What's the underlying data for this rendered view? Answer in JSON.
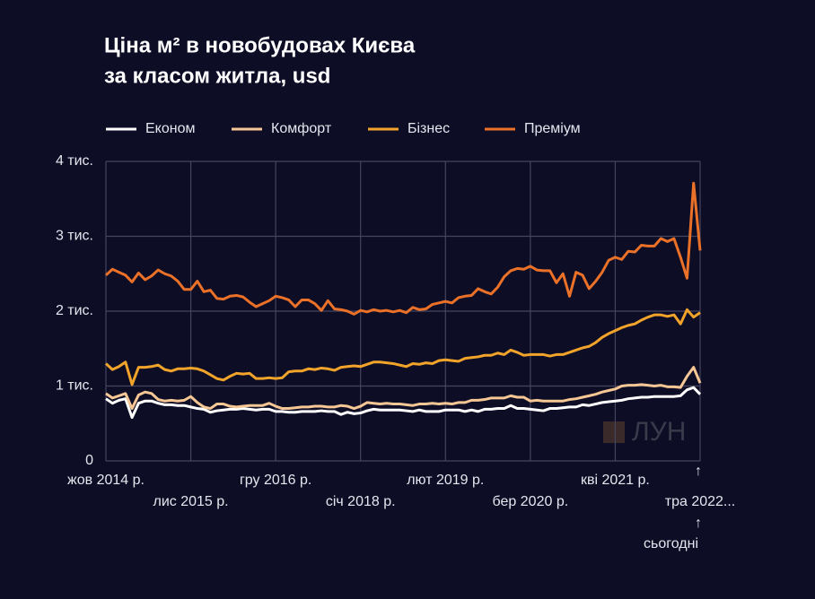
{
  "chart_data": {
    "type": "line",
    "title": [
      "Ціна м² в новобудовах Києва",
      "за класом житла, usd"
    ],
    "watermark": "ЛУН",
    "x": [
      "2014-10",
      "2014-11",
      "2014-12",
      "2015-01",
      "2015-02",
      "2015-03",
      "2015-04",
      "2015-05",
      "2015-06",
      "2015-07",
      "2015-08",
      "2015-09",
      "2015-10",
      "2015-11",
      "2015-12",
      "2016-01",
      "2016-02",
      "2016-03",
      "2016-04",
      "2016-05",
      "2016-06",
      "2016-07",
      "2016-08",
      "2016-09",
      "2016-10",
      "2016-11",
      "2016-12",
      "2017-01",
      "2017-02",
      "2017-03",
      "2017-04",
      "2017-05",
      "2017-06",
      "2017-07",
      "2017-08",
      "2017-09",
      "2017-10",
      "2017-11",
      "2017-12",
      "2018-01",
      "2018-02",
      "2018-03",
      "2018-04",
      "2018-05",
      "2018-06",
      "2018-07",
      "2018-08",
      "2018-09",
      "2018-10",
      "2018-11",
      "2018-12",
      "2019-01",
      "2019-02",
      "2019-03",
      "2019-04",
      "2019-05",
      "2019-06",
      "2019-07",
      "2019-08",
      "2019-09",
      "2019-10",
      "2019-11",
      "2019-12",
      "2020-01",
      "2020-02",
      "2020-03",
      "2020-04",
      "2020-05",
      "2020-06",
      "2020-07",
      "2020-08",
      "2020-09",
      "2020-10",
      "2020-11",
      "2020-12",
      "2021-01",
      "2021-02",
      "2021-03",
      "2021-04",
      "2021-05",
      "2021-06",
      "2021-07",
      "2021-08",
      "2021-09",
      "2021-10",
      "2021-11",
      "2021-12",
      "2022-01",
      "2022-02",
      "2022-03",
      "2022-04",
      "2022-05"
    ],
    "xlim": [
      "2014-10",
      "2022-05"
    ],
    "xticks": [
      {
        "value": "2014-10",
        "label": "жов 2014 р."
      },
      {
        "value": "2015-11",
        "label": "лис 2015 р."
      },
      {
        "value": "2016-12",
        "label": "гру 2016 р."
      },
      {
        "value": "2018-01",
        "label": "січ 2018 р."
      },
      {
        "value": "2019-02",
        "label": "лют 2019 р."
      },
      {
        "value": "2020-03",
        "label": "бер 2020 р."
      },
      {
        "value": "2021-04",
        "label": "кві 2021 р."
      },
      {
        "value": "2022-05",
        "label": "тра 2022..."
      }
    ],
    "ylim": [
      0,
      4000
    ],
    "yticks": [
      0,
      {
        "value": 1000,
        "label": "1 тис."
      },
      {
        "value": 2000,
        "label": "2 тис."
      },
      {
        "value": 3000,
        "label": "3 тис."
      },
      {
        "value": 4000,
        "label": "4 тис."
      }
    ],
    "grid": true,
    "annotations": [
      "↑",
      "↑",
      "сьогодні"
    ],
    "series": [
      {
        "name": "Економ",
        "color": "#ffffff",
        "values": [
          830,
          770,
          810,
          830,
          580,
          770,
          800,
          800,
          770,
          750,
          750,
          740,
          740,
          720,
          700,
          690,
          650,
          670,
          680,
          690,
          690,
          700,
          690,
          680,
          690,
          690,
          660,
          660,
          650,
          650,
          660,
          660,
          660,
          670,
          660,
          660,
          620,
          650,
          630,
          640,
          670,
          690,
          680,
          680,
          680,
          680,
          670,
          660,
          680,
          660,
          660,
          660,
          680,
          680,
          680,
          660,
          680,
          660,
          690,
          690,
          700,
          700,
          740,
          700,
          700,
          690,
          680,
          670,
          700,
          700,
          710,
          720,
          720,
          750,
          740,
          760,
          780,
          790,
          800,
          810,
          830,
          840,
          850,
          850,
          860,
          860,
          860,
          860,
          870,
          950,
          980,
          890
        ]
      },
      {
        "name": "Комфорт",
        "color": "#f6c794",
        "values": [
          900,
          840,
          870,
          900,
          700,
          880,
          920,
          900,
          820,
          800,
          810,
          800,
          810,
          860,
          780,
          720,
          700,
          760,
          760,
          730,
          720,
          730,
          740,
          740,
          740,
          770,
          730,
          700,
          700,
          710,
          720,
          720,
          730,
          730,
          720,
          720,
          740,
          730,
          700,
          730,
          780,
          770,
          760,
          770,
          760,
          760,
          750,
          740,
          760,
          760,
          770,
          760,
          770,
          760,
          780,
          780,
          810,
          810,
          820,
          840,
          840,
          840,
          870,
          850,
          850,
          800,
          810,
          800,
          800,
          800,
          800,
          820,
          830,
          850,
          870,
          890,
          920,
          940,
          960,
          1000,
          1010,
          1010,
          1020,
          1010,
          1000,
          1010,
          990,
          990,
          980,
          1130,
          1250,
          1040
        ]
      },
      {
        "name": "Бізнес",
        "color": "#f2a42a",
        "values": [
          1300,
          1220,
          1260,
          1320,
          1020,
          1250,
          1250,
          1260,
          1280,
          1220,
          1200,
          1230,
          1230,
          1240,
          1230,
          1200,
          1150,
          1100,
          1080,
          1130,
          1170,
          1160,
          1170,
          1100,
          1100,
          1110,
          1100,
          1110,
          1190,
          1200,
          1200,
          1230,
          1220,
          1240,
          1230,
          1210,
          1250,
          1260,
          1270,
          1260,
          1290,
          1320,
          1320,
          1310,
          1300,
          1280,
          1260,
          1300,
          1290,
          1310,
          1300,
          1340,
          1350,
          1340,
          1330,
          1370,
          1380,
          1390,
          1410,
          1410,
          1440,
          1420,
          1480,
          1450,
          1410,
          1420,
          1420,
          1420,
          1400,
          1420,
          1420,
          1450,
          1480,
          1510,
          1530,
          1580,
          1650,
          1700,
          1740,
          1780,
          1810,
          1830,
          1880,
          1920,
          1950,
          1950,
          1930,
          1950,
          1830,
          2020,
          1920,
          1980
        ]
      },
      {
        "name": "Преміум",
        "color": "#ea7127",
        "values": [
          2480,
          2560,
          2520,
          2480,
          2390,
          2510,
          2420,
          2470,
          2550,
          2500,
          2470,
          2400,
          2290,
          2290,
          2400,
          2260,
          2280,
          2170,
          2160,
          2200,
          2210,
          2190,
          2120,
          2060,
          2100,
          2140,
          2200,
          2180,
          2150,
          2060,
          2150,
          2150,
          2100,
          2010,
          2140,
          2030,
          2020,
          2000,
          1960,
          2010,
          1990,
          2020,
          2000,
          2010,
          1990,
          2010,
          1980,
          2050,
          2020,
          2030,
          2090,
          2110,
          2130,
          2110,
          2180,
          2200,
          2210,
          2300,
          2260,
          2230,
          2320,
          2460,
          2540,
          2570,
          2560,
          2600,
          2550,
          2540,
          2540,
          2380,
          2500,
          2200,
          2520,
          2480,
          2300,
          2400,
          2520,
          2680,
          2720,
          2690,
          2800,
          2790,
          2880,
          2870,
          2870,
          2970,
          2930,
          2970,
          2720,
          2440,
          3710,
          2810
        ]
      }
    ]
  }
}
